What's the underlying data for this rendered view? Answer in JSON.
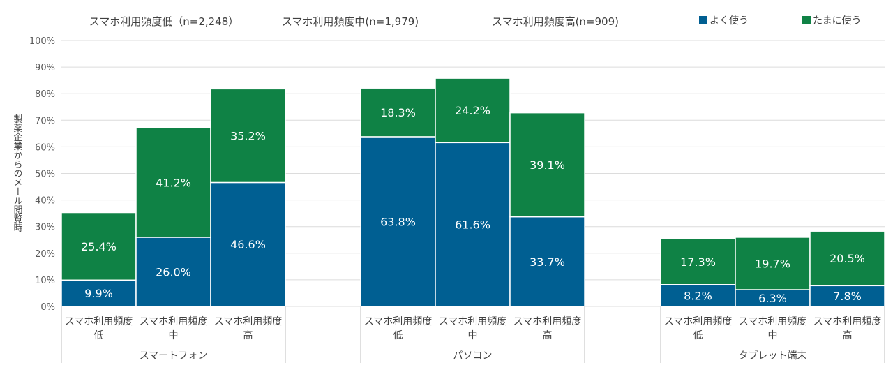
{
  "headers": [
    "スマホ利用頻度低（n=2,248）",
    "スマホ利用頻度中(n=1,979)",
    "スマホ利用頻度高(n=909)"
  ],
  "legend": [
    {
      "label": "よく使う",
      "color": "#005f92"
    },
    {
      "label": "たまに使う",
      "color": "#0f8245"
    }
  ],
  "chart_data": {
    "type": "bar",
    "stacked": true,
    "ylabel": "製薬企業からのメール閲覧時",
    "ylim": [
      0,
      100
    ],
    "yticks": [
      "0%",
      "10%",
      "20%",
      "30%",
      "40%",
      "50%",
      "60%",
      "70%",
      "80%",
      "90%",
      "100%"
    ],
    "groups": [
      {
        "name": "スマートフォン",
        "categories": [
          [
            "スマホ利用頻度",
            "低"
          ],
          [
            "スマホ利用頻度",
            "中"
          ],
          [
            "スマホ利用頻度",
            "高"
          ]
        ]
      },
      {
        "name": "パソコン",
        "categories": [
          [
            "スマホ利用頻度",
            "低"
          ],
          [
            "スマホ利用頻度",
            "中"
          ],
          [
            "スマホ利用頻度",
            "高"
          ]
        ]
      },
      {
        "name": "タブレット端末",
        "categories": [
          [
            "スマホ利用頻度",
            "低"
          ],
          [
            "スマホ利用頻度",
            "中"
          ],
          [
            "スマホ利用頻度",
            "高"
          ]
        ]
      }
    ],
    "series": [
      {
        "name": "よく使う",
        "color": "#005f92",
        "values": [
          9.9,
          26.0,
          46.6,
          63.8,
          61.6,
          33.7,
          8.2,
          6.3,
          7.8
        ],
        "labels": [
          "9.9%",
          "26.0%",
          "46.6%",
          "63.8%",
          "61.6%",
          "33.7%",
          "8.2%",
          "6.3%",
          "7.8%"
        ]
      },
      {
        "name": "たまに使う",
        "color": "#0f8245",
        "values": [
          25.4,
          41.2,
          35.2,
          18.3,
          24.2,
          39.1,
          17.3,
          19.7,
          20.5
        ],
        "labels": [
          "25.4%",
          "41.2%",
          "35.2%",
          "18.3%",
          "24.2%",
          "39.1%",
          "17.3%",
          "19.7%",
          "20.5%"
        ]
      }
    ],
    "grid": true,
    "legend_position": "top-right"
  }
}
